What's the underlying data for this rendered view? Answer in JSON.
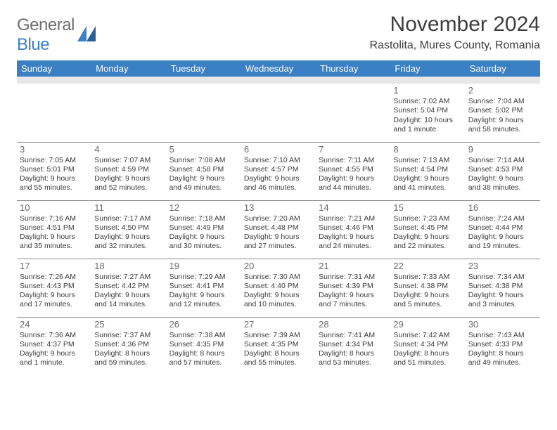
{
  "logo": {
    "word1": "General",
    "word2": "Blue"
  },
  "title": "November 2024",
  "location": "Rastolita, Mures County, Romania",
  "colors": {
    "header_bg": "#3b7fc4",
    "header_fg": "#ffffff",
    "spacer_bg": "#e7e7e7",
    "border": "#8a8a8a",
    "text": "#3d3d3d",
    "daynum": "#6a6a6a"
  },
  "dayNames": [
    "Sunday",
    "Monday",
    "Tuesday",
    "Wednesday",
    "Thursday",
    "Friday",
    "Saturday"
  ],
  "weeks": [
    [
      {
        "n": "",
        "s1": "",
        "s2": "",
        "s3": "",
        "s4": ""
      },
      {
        "n": "",
        "s1": "",
        "s2": "",
        "s3": "",
        "s4": ""
      },
      {
        "n": "",
        "s1": "",
        "s2": "",
        "s3": "",
        "s4": ""
      },
      {
        "n": "",
        "s1": "",
        "s2": "",
        "s3": "",
        "s4": ""
      },
      {
        "n": "",
        "s1": "",
        "s2": "",
        "s3": "",
        "s4": ""
      },
      {
        "n": "1",
        "s1": "Sunrise: 7:02 AM",
        "s2": "Sunset: 5:04 PM",
        "s3": "Daylight: 10 hours",
        "s4": "and 1 minute."
      },
      {
        "n": "2",
        "s1": "Sunrise: 7:04 AM",
        "s2": "Sunset: 5:02 PM",
        "s3": "Daylight: 9 hours",
        "s4": "and 58 minutes."
      }
    ],
    [
      {
        "n": "3",
        "s1": "Sunrise: 7:05 AM",
        "s2": "Sunset: 5:01 PM",
        "s3": "Daylight: 9 hours",
        "s4": "and 55 minutes."
      },
      {
        "n": "4",
        "s1": "Sunrise: 7:07 AM",
        "s2": "Sunset: 4:59 PM",
        "s3": "Daylight: 9 hours",
        "s4": "and 52 minutes."
      },
      {
        "n": "5",
        "s1": "Sunrise: 7:08 AM",
        "s2": "Sunset: 4:58 PM",
        "s3": "Daylight: 9 hours",
        "s4": "and 49 minutes."
      },
      {
        "n": "6",
        "s1": "Sunrise: 7:10 AM",
        "s2": "Sunset: 4:57 PM",
        "s3": "Daylight: 9 hours",
        "s4": "and 46 minutes."
      },
      {
        "n": "7",
        "s1": "Sunrise: 7:11 AM",
        "s2": "Sunset: 4:55 PM",
        "s3": "Daylight: 9 hours",
        "s4": "and 44 minutes."
      },
      {
        "n": "8",
        "s1": "Sunrise: 7:13 AM",
        "s2": "Sunset: 4:54 PM",
        "s3": "Daylight: 9 hours",
        "s4": "and 41 minutes."
      },
      {
        "n": "9",
        "s1": "Sunrise: 7:14 AM",
        "s2": "Sunset: 4:53 PM",
        "s3": "Daylight: 9 hours",
        "s4": "and 38 minutes."
      }
    ],
    [
      {
        "n": "10",
        "s1": "Sunrise: 7:16 AM",
        "s2": "Sunset: 4:51 PM",
        "s3": "Daylight: 9 hours",
        "s4": "and 35 minutes."
      },
      {
        "n": "11",
        "s1": "Sunrise: 7:17 AM",
        "s2": "Sunset: 4:50 PM",
        "s3": "Daylight: 9 hours",
        "s4": "and 32 minutes."
      },
      {
        "n": "12",
        "s1": "Sunrise: 7:18 AM",
        "s2": "Sunset: 4:49 PM",
        "s3": "Daylight: 9 hours",
        "s4": "and 30 minutes."
      },
      {
        "n": "13",
        "s1": "Sunrise: 7:20 AM",
        "s2": "Sunset: 4:48 PM",
        "s3": "Daylight: 9 hours",
        "s4": "and 27 minutes."
      },
      {
        "n": "14",
        "s1": "Sunrise: 7:21 AM",
        "s2": "Sunset: 4:46 PM",
        "s3": "Daylight: 9 hours",
        "s4": "and 24 minutes."
      },
      {
        "n": "15",
        "s1": "Sunrise: 7:23 AM",
        "s2": "Sunset: 4:45 PM",
        "s3": "Daylight: 9 hours",
        "s4": "and 22 minutes."
      },
      {
        "n": "16",
        "s1": "Sunrise: 7:24 AM",
        "s2": "Sunset: 4:44 PM",
        "s3": "Daylight: 9 hours",
        "s4": "and 19 minutes."
      }
    ],
    [
      {
        "n": "17",
        "s1": "Sunrise: 7:26 AM",
        "s2": "Sunset: 4:43 PM",
        "s3": "Daylight: 9 hours",
        "s4": "and 17 minutes."
      },
      {
        "n": "18",
        "s1": "Sunrise: 7:27 AM",
        "s2": "Sunset: 4:42 PM",
        "s3": "Daylight: 9 hours",
        "s4": "and 14 minutes."
      },
      {
        "n": "19",
        "s1": "Sunrise: 7:29 AM",
        "s2": "Sunset: 4:41 PM",
        "s3": "Daylight: 9 hours",
        "s4": "and 12 minutes."
      },
      {
        "n": "20",
        "s1": "Sunrise: 7:30 AM",
        "s2": "Sunset: 4:40 PM",
        "s3": "Daylight: 9 hours",
        "s4": "and 10 minutes."
      },
      {
        "n": "21",
        "s1": "Sunrise: 7:31 AM",
        "s2": "Sunset: 4:39 PM",
        "s3": "Daylight: 9 hours",
        "s4": "and 7 minutes."
      },
      {
        "n": "22",
        "s1": "Sunrise: 7:33 AM",
        "s2": "Sunset: 4:38 PM",
        "s3": "Daylight: 9 hours",
        "s4": "and 5 minutes."
      },
      {
        "n": "23",
        "s1": "Sunrise: 7:34 AM",
        "s2": "Sunset: 4:38 PM",
        "s3": "Daylight: 9 hours",
        "s4": "and 3 minutes."
      }
    ],
    [
      {
        "n": "24",
        "s1": "Sunrise: 7:36 AM",
        "s2": "Sunset: 4:37 PM",
        "s3": "Daylight: 9 hours",
        "s4": "and 1 minute."
      },
      {
        "n": "25",
        "s1": "Sunrise: 7:37 AM",
        "s2": "Sunset: 4:36 PM",
        "s3": "Daylight: 8 hours",
        "s4": "and 59 minutes."
      },
      {
        "n": "26",
        "s1": "Sunrise: 7:38 AM",
        "s2": "Sunset: 4:35 PM",
        "s3": "Daylight: 8 hours",
        "s4": "and 57 minutes."
      },
      {
        "n": "27",
        "s1": "Sunrise: 7:39 AM",
        "s2": "Sunset: 4:35 PM",
        "s3": "Daylight: 8 hours",
        "s4": "and 55 minutes."
      },
      {
        "n": "28",
        "s1": "Sunrise: 7:41 AM",
        "s2": "Sunset: 4:34 PM",
        "s3": "Daylight: 8 hours",
        "s4": "and 53 minutes."
      },
      {
        "n": "29",
        "s1": "Sunrise: 7:42 AM",
        "s2": "Sunset: 4:34 PM",
        "s3": "Daylight: 8 hours",
        "s4": "and 51 minutes."
      },
      {
        "n": "30",
        "s1": "Sunrise: 7:43 AM",
        "s2": "Sunset: 4:33 PM",
        "s3": "Daylight: 8 hours",
        "s4": "and 49 minutes."
      }
    ]
  ]
}
